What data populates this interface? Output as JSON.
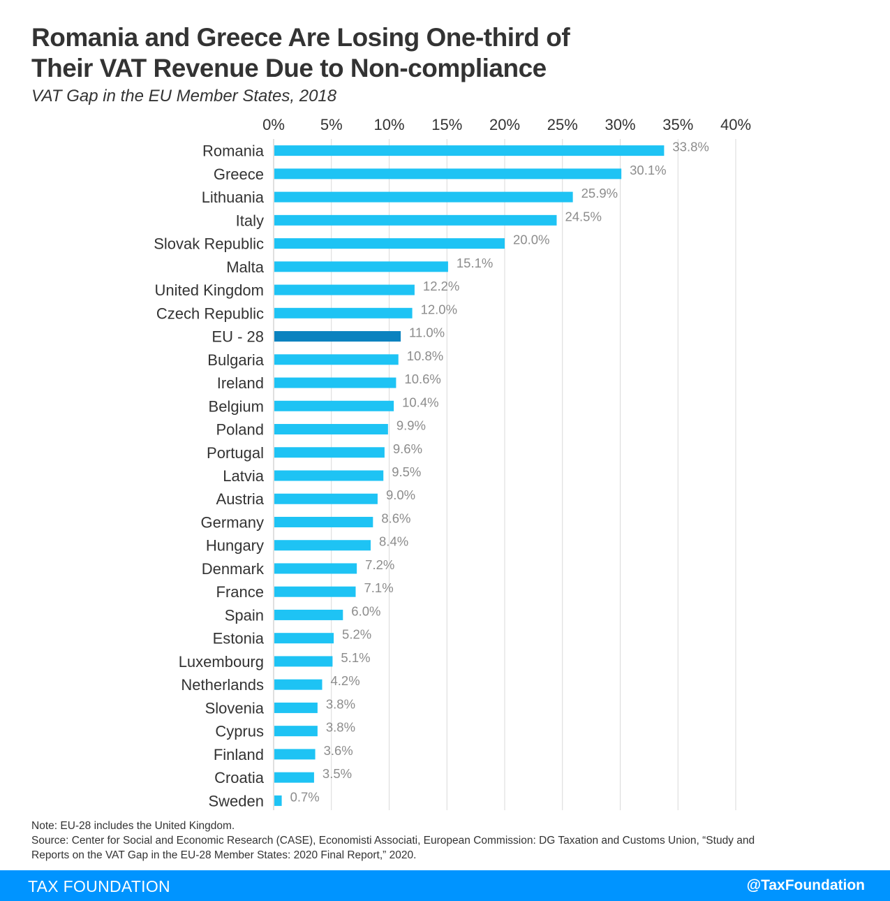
{
  "title_line1": "Romania and Greece Are Losing One-third of",
  "title_line2": "Their VAT Revenue Due to Non-compliance",
  "subtitle": "VAT Gap in the EU Member States, 2018",
  "note": "Note: EU-28 includes the United Kingdom.",
  "source_line1": "Source: Center for Social and Economic Research (CASE), Economisti Associati, European Commission: DG Taxation and Customs Union, “Study and",
  "source_line2": "Reports on the VAT Gap in the EU-28 Member States: 2020 Final Report,” 2020.",
  "footer": {
    "brand": "TAX FOUNDATION",
    "handle": "@TaxFoundation"
  },
  "colors": {
    "bar": "#1ec3f4",
    "highlight": "#0a82bf",
    "value_label": "#8c8c8c",
    "gridline": "#d9d9d9",
    "footer": "#0094ff"
  },
  "chart_data": {
    "type": "bar",
    "orientation": "horizontal",
    "xlim": [
      0,
      40
    ],
    "ticks": [
      "0%",
      "5%",
      "10%",
      "15%",
      "20%",
      "25%",
      "30%",
      "35%",
      "40%"
    ],
    "tick_values": [
      0,
      5,
      10,
      15,
      20,
      25,
      30,
      35,
      40
    ],
    "grid": true,
    "categories": [
      "Romania",
      "Greece",
      "Lithuania",
      "Italy",
      "Slovak Republic",
      "Malta",
      "United Kingdom",
      "Czech Republic",
      "EU - 28",
      "Bulgaria",
      "Ireland",
      "Belgium",
      "Poland",
      "Portugal",
      "Latvia",
      "Austria",
      "Germany",
      "Hungary",
      "Denmark",
      "France",
      "Spain",
      "Estonia",
      "Luxembourg",
      "Netherlands",
      "Slovenia",
      "Cyprus",
      "Finland",
      "Croatia",
      "Sweden"
    ],
    "values": [
      33.8,
      30.1,
      25.9,
      24.5,
      20.0,
      15.1,
      12.2,
      12.0,
      11.0,
      10.8,
      10.6,
      10.4,
      9.9,
      9.6,
      9.5,
      9.0,
      8.6,
      8.4,
      7.2,
      7.1,
      6.0,
      5.2,
      5.1,
      4.2,
      3.8,
      3.8,
      3.6,
      3.5,
      0.7
    ],
    "labels": [
      "33.8%",
      "30.1%",
      "25.9%",
      "24.5%",
      "20.0%",
      "15.1%",
      "12.2%",
      "12.0%",
      "11.0%",
      "10.8%",
      "10.6%",
      "10.4%",
      "9.9%",
      "9.6%",
      "9.5%",
      "9.0%",
      "8.6%",
      "8.4%",
      "7.2%",
      "7.1%",
      "6.0%",
      "5.2%",
      "5.1%",
      "4.2%",
      "3.8%",
      "3.8%",
      "3.6%",
      "3.5%",
      "0.7%"
    ],
    "highlight": "EU - 28"
  }
}
